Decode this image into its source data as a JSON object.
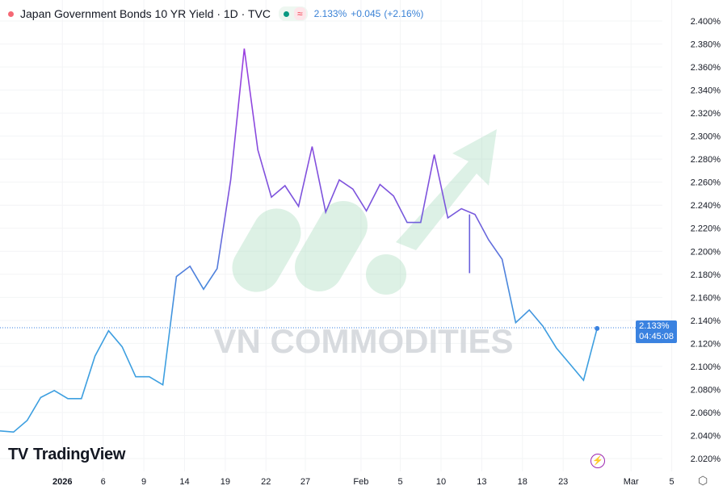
{
  "header": {
    "title": "Japan Government Bonds 10 YR Yield · 1D · TVC",
    "wave_icon": "≈",
    "last": "2.133%",
    "change": "+0.045",
    "change_pct": "(+2.16%)"
  },
  "branding": {
    "logo": "TradingView",
    "watermark": "VN COMMODITIES"
  },
  "price_label": {
    "value": "2.133%",
    "countdown": "04:45:08"
  },
  "colors": {
    "line_top": "#9b3fe0",
    "line_bottom": "#3d8fe0",
    "accent": "#3a82e0"
  },
  "chart_data": {
    "type": "line",
    "title": "Japan Government Bonds 10 YR Yield · 1D · TVC",
    "ylabel": "%",
    "ylim": [
      2.02,
      2.4
    ],
    "yticks": [
      "2.400%",
      "2.380%",
      "2.360%",
      "2.340%",
      "2.320%",
      "2.300%",
      "2.280%",
      "2.260%",
      "2.240%",
      "2.220%",
      "2.200%",
      "2.180%",
      "2.160%",
      "2.140%",
      "2.120%",
      "2.100%",
      "2.080%",
      "2.060%",
      "2.040%",
      "2.020%"
    ],
    "xticks": [
      {
        "label": "2026",
        "index": 4.6
      },
      {
        "label": "6",
        "index": 7.6
      },
      {
        "label": "9",
        "index": 10.6
      },
      {
        "label": "14",
        "index": 13.6
      },
      {
        "label": "19",
        "index": 16.6
      },
      {
        "label": "22",
        "index": 19.6
      },
      {
        "label": "27",
        "index": 22.5
      },
      {
        "label": "Feb",
        "index": 26.6
      },
      {
        "label": "5",
        "index": 29.5
      },
      {
        "label": "10",
        "index": 32.5
      },
      {
        "label": "13",
        "index": 35.5
      },
      {
        "label": "18",
        "index": 38.5
      },
      {
        "label": "23",
        "index": 41.5
      },
      {
        "label": "Mar",
        "index": 46.5
      },
      {
        "label": "5",
        "index": 49.5
      }
    ],
    "values": [
      2.044,
      2.043,
      2.053,
      2.073,
      2.079,
      2.072,
      2.072,
      2.109,
      2.131,
      2.117,
      2.091,
      2.091,
      2.084,
      2.178,
      2.187,
      2.167,
      2.185,
      2.262,
      2.376,
      2.288,
      2.247,
      2.257,
      2.239,
      2.291,
      2.234,
      2.262,
      2.254,
      2.235,
      2.258,
      2.248,
      2.225,
      2.225,
      2.284,
      2.229,
      2.237,
      2.232,
      2.21,
      2.193,
      2.138,
      2.149,
      2.135,
      2.116,
      2.102,
      2.088,
      2.133
    ],
    "spike": {
      "index": 34.6,
      "from": 2.232,
      "to": 2.181
    },
    "last_value": 2.133
  }
}
